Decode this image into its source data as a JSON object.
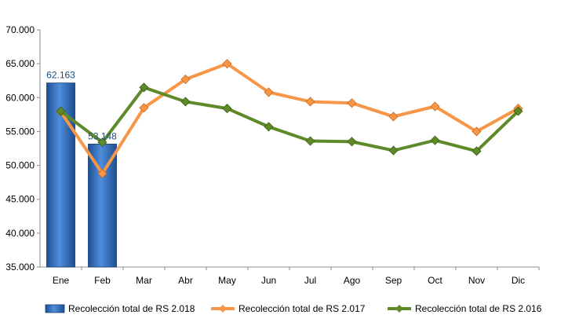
{
  "chart_data": {
    "type": "bar+line",
    "title": "",
    "xlabel": "",
    "ylabel": "",
    "categories": [
      "Ene",
      "Feb",
      "Mar",
      "Abr",
      "May",
      "Jun",
      "Jul",
      "Ago",
      "Sep",
      "Oct",
      "Nov",
      "Dic"
    ],
    "ylim": [
      35000,
      70000
    ],
    "yticks": [
      35000,
      40000,
      45000,
      50000,
      55000,
      60000,
      65000,
      70000
    ],
    "ytick_labels": [
      "35.000",
      "40.000",
      "45.000",
      "50.000",
      "55.000",
      "60.000",
      "65.000",
      "70.000"
    ],
    "grid": false,
    "legend_position": "bottom",
    "series": [
      {
        "name": "Recolección total de RS 2.018",
        "kind": "bar",
        "color": "#2e6fc0",
        "values": [
          62163,
          53148,
          null,
          null,
          null,
          null,
          null,
          null,
          null,
          null,
          null,
          null
        ],
        "data_labels": [
          "62.163",
          "53.148",
          "",
          "",
          "",
          "",
          "",
          "",
          "",
          "",
          "",
          ""
        ]
      },
      {
        "name": "Recolección total de RS 2.017",
        "kind": "line",
        "color": "#f79646",
        "values": [
          57900,
          48800,
          58500,
          62700,
          65000,
          60800,
          59400,
          59200,
          57200,
          58700,
          55000,
          58400
        ]
      },
      {
        "name": "Recolección total de RS 2.016",
        "kind": "line",
        "color": "#5f8a2a",
        "values": [
          58000,
          53400,
          61500,
          59400,
          58400,
          55700,
          53600,
          53500,
          52200,
          53700,
          52100,
          58000
        ]
      }
    ]
  }
}
